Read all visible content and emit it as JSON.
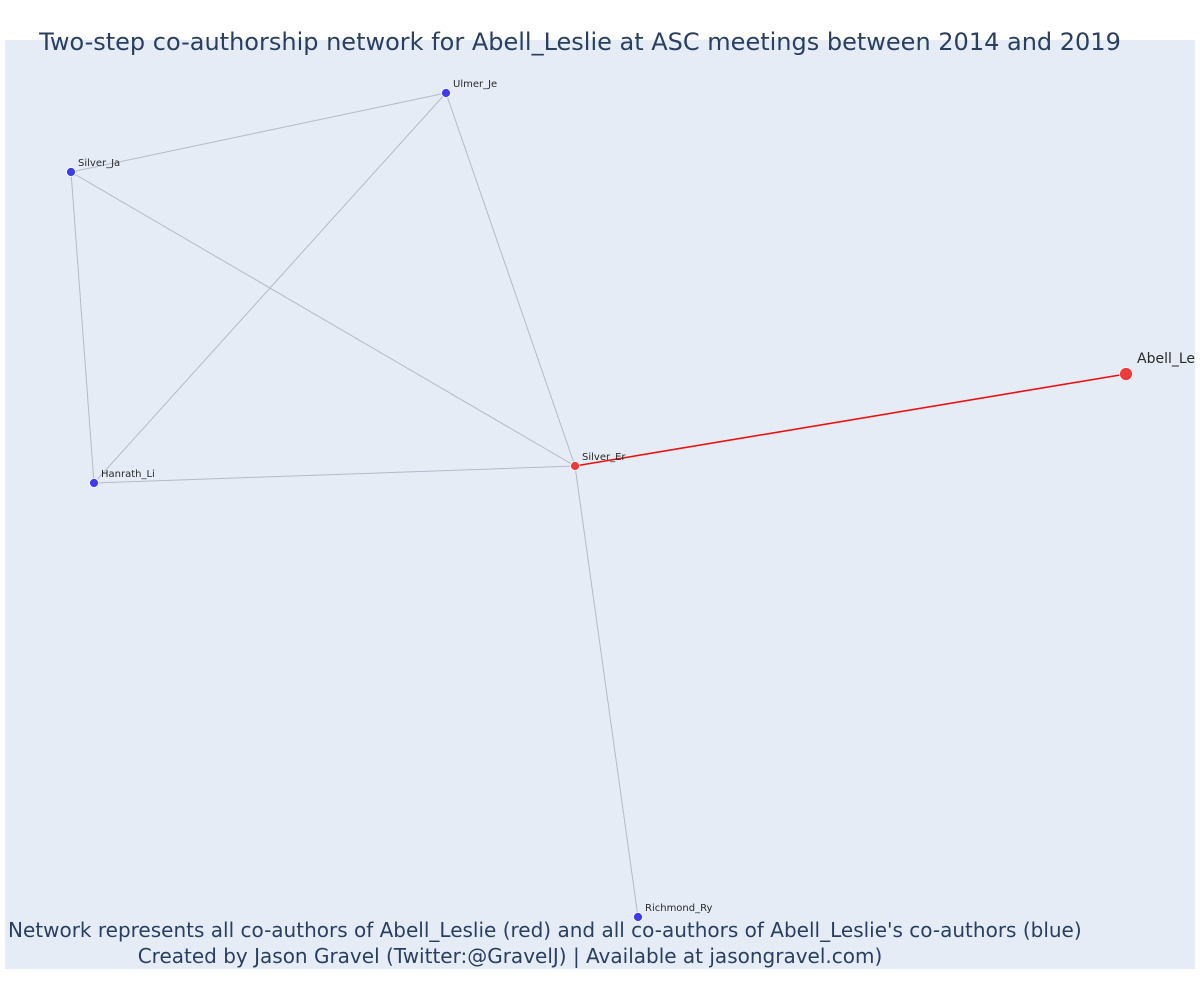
{
  "title": "Two-step co-authorship network for Abell_Leslie at ASC meetings between 2014 and 2019",
  "captions": {
    "line1": "Network represents all co-authors of Abell_Leslie (red) and all co-authors of Abell_Leslie's co-authors (blue)",
    "line2": "Created by Jason Gravel (Twitter:@GravelJ) | Available at jasongravel.com)"
  },
  "colors": {
    "background": "#e5ecf6",
    "edge": "#b5b9c9",
    "focal_edge": "#ee1111",
    "red_node": "#ef3b3b",
    "blue_node": "#3b3bef"
  },
  "network": {
    "nodes": [
      {
        "id": "Abell_Le",
        "label": "Abell_Le",
        "group": "focal"
      },
      {
        "id": "Silver_Er",
        "label": "Silver_Er",
        "group": "red"
      },
      {
        "id": "Ulmer_Je",
        "label": "Ulmer_Je",
        "group": "blue"
      },
      {
        "id": "Silver_Ja",
        "label": "Silver_Ja",
        "group": "blue"
      },
      {
        "id": "Hanrath_Li",
        "label": "Hanrath_Li",
        "group": "blue"
      },
      {
        "id": "Richmond_Ry",
        "label": "Richmond_Ry",
        "group": "blue"
      }
    ],
    "edges": [
      {
        "source": "Abell_Le",
        "target": "Silver_Er",
        "focal": true
      },
      {
        "source": "Silver_Er",
        "target": "Ulmer_Je",
        "focal": false
      },
      {
        "source": "Silver_Er",
        "target": "Silver_Ja",
        "focal": false
      },
      {
        "source": "Silver_Er",
        "target": "Hanrath_Li",
        "focal": false
      },
      {
        "source": "Silver_Er",
        "target": "Richmond_Ry",
        "focal": false
      },
      {
        "source": "Ulmer_Je",
        "target": "Silver_Ja",
        "focal": false
      },
      {
        "source": "Ulmer_Je",
        "target": "Hanrath_Li",
        "focal": false
      },
      {
        "source": "Silver_Ja",
        "target": "Hanrath_Li",
        "focal": false
      }
    ]
  }
}
